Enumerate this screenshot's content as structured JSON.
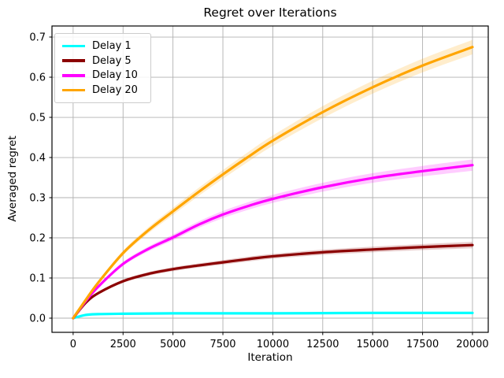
{
  "figure": {
    "background": "#ffffff",
    "text_color": "#000000"
  },
  "chart_data": {
    "type": "line",
    "title": "Regret over Iterations",
    "xlabel": "Iteration",
    "ylabel": "Averaged regret",
    "grid": true,
    "grid_color": "#b0b0b0",
    "frame_color": "#000000",
    "legend_position": "upper left",
    "xlim": [
      -1060,
      20790
    ],
    "ylim": [
      -0.0353,
      0.7275
    ],
    "x_ticks": [
      0,
      2500,
      5000,
      7500,
      10000,
      12500,
      15000,
      17500,
      20000
    ],
    "x_tick_labels": [
      "0",
      "2500",
      "5000",
      "7500",
      "10000",
      "12500",
      "15000",
      "17500",
      "20000"
    ],
    "y_ticks": [
      0.0,
      0.1,
      0.2,
      0.3,
      0.4,
      0.5,
      0.6,
      0.7
    ],
    "y_tick_labels": [
      "0.0",
      "0.1",
      "0.2",
      "0.3",
      "0.4",
      "0.5",
      "0.6",
      "0.7"
    ],
    "x": [
      0,
      625,
      1250,
      2500,
      3750,
      5000,
      6250,
      7500,
      8750,
      10000,
      12500,
      15000,
      17500,
      20000
    ],
    "series": [
      {
        "name": "Delay 1",
        "color": "#00ffff",
        "values": [
          0,
          0.008,
          0.01,
          0.011,
          0.0115,
          0.012,
          0.012,
          0.012,
          0.012,
          0.012,
          0.0125,
          0.013,
          0.013,
          0.013
        ],
        "band": [
          0,
          0.001,
          0.001,
          0.001,
          0.0012,
          0.0012,
          0.0012,
          0.0013,
          0.0013,
          0.0013,
          0.0014,
          0.0014,
          0.0015,
          0.0015
        ]
      },
      {
        "name": "Delay 5",
        "color": "#8b0000",
        "values": [
          0,
          0.038,
          0.062,
          0.092,
          0.11,
          0.122,
          0.131,
          0.139,
          0.147,
          0.154,
          0.164,
          0.171,
          0.177,
          0.182
        ],
        "band": [
          0,
          0.002,
          0.003,
          0.004,
          0.0045,
          0.005,
          0.005,
          0.0055,
          0.006,
          0.006,
          0.0065,
          0.007,
          0.0075,
          0.008
        ]
      },
      {
        "name": "Delay 10",
        "color": "#ff00ff",
        "values": [
          0,
          0.042,
          0.078,
          0.135,
          0.172,
          0.201,
          0.232,
          0.258,
          0.279,
          0.297,
          0.326,
          0.349,
          0.366,
          0.381
        ],
        "band": [
          0,
          0.002,
          0.0035,
          0.005,
          0.006,
          0.007,
          0.008,
          0.009,
          0.0095,
          0.01,
          0.011,
          0.012,
          0.013,
          0.014
        ]
      },
      {
        "name": "Delay 20",
        "color": "#ffa500",
        "values": [
          0,
          0.045,
          0.088,
          0.162,
          0.218,
          0.266,
          0.313,
          0.358,
          0.401,
          0.442,
          0.513,
          0.575,
          0.629,
          0.675
        ],
        "band": [
          0,
          0.002,
          0.004,
          0.006,
          0.0075,
          0.009,
          0.01,
          0.011,
          0.012,
          0.013,
          0.015,
          0.016,
          0.017,
          0.018
        ]
      }
    ]
  }
}
